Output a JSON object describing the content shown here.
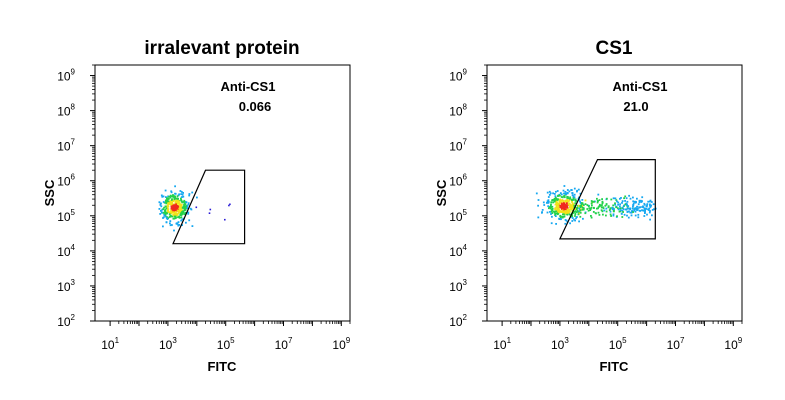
{
  "chart_data": [
    {
      "type": "scatter",
      "title": "irralevant protein",
      "xlabel": "FITC",
      "ylabel": "SSC",
      "x_scale": "log",
      "y_scale": "log",
      "xlim": [
        3,
        2000000000
      ],
      "ylim": [
        100,
        2000000000
      ],
      "x_ticks": [
        {
          "base": "10",
          "exp": "1",
          "value": 10
        },
        {
          "base": "10",
          "exp": "3",
          "value": 1000
        },
        {
          "base": "10",
          "exp": "5",
          "value": 100000
        },
        {
          "base": "10",
          "exp": "7",
          "value": 10000000
        },
        {
          "base": "10",
          "exp": "9",
          "value": 1000000000
        }
      ],
      "y_ticks": [
        {
          "base": "10",
          "exp": "2",
          "value": 100
        },
        {
          "base": "10",
          "exp": "3",
          "value": 1000
        },
        {
          "base": "10",
          "exp": "4",
          "value": 10000
        },
        {
          "base": "10",
          "exp": "5",
          "value": 100000
        },
        {
          "base": "10",
          "exp": "6",
          "value": 1000000
        },
        {
          "base": "10",
          "exp": "7",
          "value": 10000000
        },
        {
          "base": "10",
          "exp": "8",
          "value": 100000000
        },
        {
          "base": "10",
          "exp": "9",
          "value": 1000000000
        }
      ],
      "gate": {
        "name": "Anti-CS1",
        "percent": "0.066",
        "vertices": [
          [
            1500,
            16000
          ],
          [
            20000,
            2000000
          ],
          [
            450000,
            2000000
          ],
          [
            450000,
            16000
          ]
        ]
      },
      "population": {
        "center": [
          1600,
          180000
        ],
        "spread": [
          0.25,
          0.22
        ],
        "tail_to_x": null
      },
      "grid": false,
      "legend": "none"
    },
    {
      "type": "scatter",
      "title": "CS1",
      "xlabel": "FITC",
      "ylabel": "SSC",
      "x_scale": "log",
      "y_scale": "log",
      "xlim": [
        3,
        2000000000
      ],
      "ylim": [
        100,
        2000000000
      ],
      "x_ticks": [
        {
          "base": "10",
          "exp": "1",
          "value": 10
        },
        {
          "base": "10",
          "exp": "3",
          "value": 1000
        },
        {
          "base": "10",
          "exp": "5",
          "value": 100000
        },
        {
          "base": "10",
          "exp": "7",
          "value": 10000000
        },
        {
          "base": "10",
          "exp": "9",
          "value": 1000000000
        }
      ],
      "y_ticks": [
        {
          "base": "10",
          "exp": "2",
          "value": 100
        },
        {
          "base": "10",
          "exp": "3",
          "value": 1000
        },
        {
          "base": "10",
          "exp": "4",
          "value": 10000
        },
        {
          "base": "10",
          "exp": "5",
          "value": 100000
        },
        {
          "base": "10",
          "exp": "6",
          "value": 1000000
        },
        {
          "base": "10",
          "exp": "7",
          "value": 10000000
        },
        {
          "base": "10",
          "exp": "8",
          "value": 100000000
        },
        {
          "base": "10",
          "exp": "9",
          "value": 1000000000
        }
      ],
      "gate": {
        "name": "Anti-CS1",
        "percent": "21.0",
        "vertices": [
          [
            1000,
            22000
          ],
          [
            20000,
            4000000
          ],
          [
            2000000,
            4000000
          ],
          [
            2000000,
            22000
          ]
        ]
      },
      "population": {
        "center": [
          1300,
          200000
        ],
        "spread": [
          0.32,
          0.2
        ],
        "tail_to_x": 1500000
      },
      "grid": false,
      "legend": "none"
    }
  ]
}
